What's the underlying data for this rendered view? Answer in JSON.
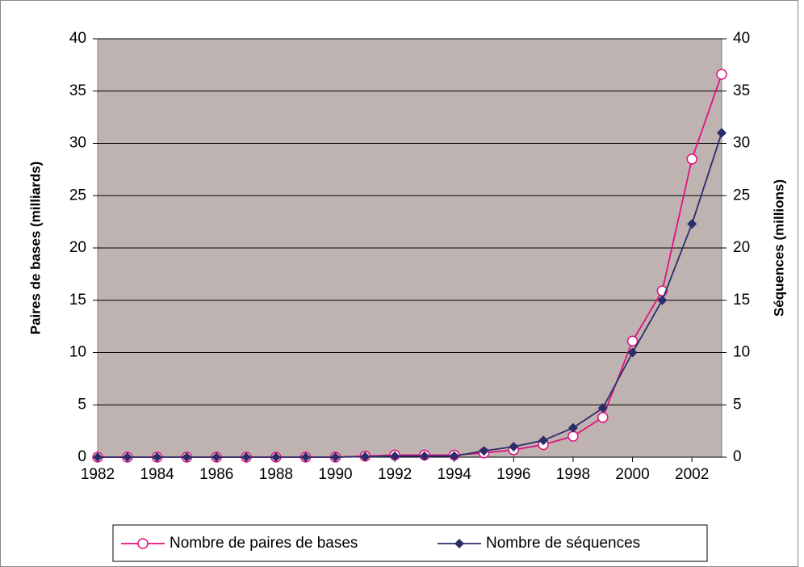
{
  "chart_data": {
    "type": "line",
    "x": [
      1982,
      1983,
      1984,
      1985,
      1986,
      1987,
      1988,
      1989,
      1990,
      1991,
      1992,
      1993,
      1994,
      1995,
      1996,
      1997,
      1998,
      1999,
      2000,
      2001,
      2002,
      2003
    ],
    "xlim": [
      1982,
      2003
    ],
    "xticks": [
      1982,
      1984,
      1986,
      1988,
      1990,
      1992,
      1994,
      1996,
      1998,
      2000,
      2002
    ],
    "ylabel": "Paires de bases (milliards)",
    "y2label": "Séquences (millions)",
    "ylim": [
      0,
      40
    ],
    "yticks": [
      0,
      5,
      10,
      15,
      20,
      25,
      30,
      35,
      40
    ],
    "y2lim": [
      0,
      40
    ],
    "y2ticks": [
      0,
      5,
      10,
      15,
      20,
      25,
      30,
      35,
      40
    ],
    "grid": true,
    "legend": "bottom",
    "series": [
      {
        "name": "Nombre de paires de bases",
        "color": "#e0117f",
        "marker": "circle",
        "values": [
          0,
          0,
          0,
          0,
          0,
          0,
          0,
          0,
          0,
          0.1,
          0.2,
          0.2,
          0.2,
          0.4,
          0.7,
          1.2,
          2.0,
          3.8,
          11.1,
          15.9,
          28.5,
          36.6
        ]
      },
      {
        "name": "Nombre de séquences",
        "color": "#2b2d6b",
        "marker": "diamond",
        "axis": "y2",
        "values": [
          0,
          0,
          0,
          0,
          0,
          0,
          0,
          0,
          0,
          0.05,
          0.1,
          0.1,
          0.1,
          0.6,
          1.0,
          1.6,
          2.8,
          4.7,
          10.0,
          15.0,
          22.3,
          31.0
        ]
      }
    ]
  }
}
